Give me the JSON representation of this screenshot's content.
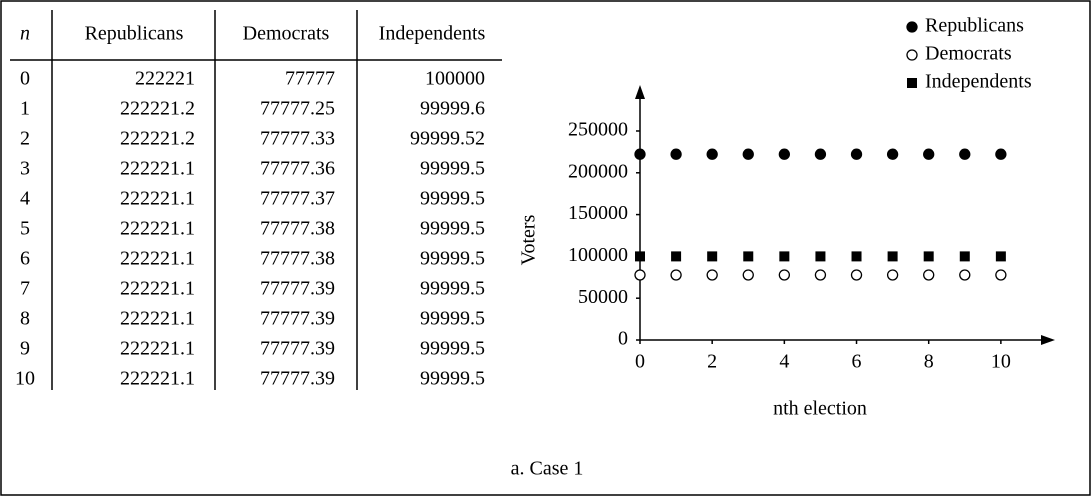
{
  "table": {
    "header": [
      "n",
      "Republicans",
      "Democrats",
      "Independents"
    ],
    "rows": [
      [
        "0",
        "222221",
        "77777",
        "100000"
      ],
      [
        "1",
        "222221.2",
        "77777.25",
        "99999.6"
      ],
      [
        "2",
        "222221.2",
        "77777.33",
        "99999.52"
      ],
      [
        "3",
        "222221.1",
        "77777.36",
        "99999.5"
      ],
      [
        "4",
        "222221.1",
        "77777.37",
        "99999.5"
      ],
      [
        "5",
        "222221.1",
        "77777.38",
        "99999.5"
      ],
      [
        "6",
        "222221.1",
        "77777.38",
        "99999.5"
      ],
      [
        "7",
        "222221.1",
        "77777.39",
        "99999.5"
      ],
      [
        "8",
        "222221.1",
        "77777.39",
        "99999.5"
      ],
      [
        "9",
        "222221.1",
        "77777.39",
        "99999.5"
      ],
      [
        "10",
        "222221.1",
        "77777.39",
        "99999.5"
      ]
    ]
  },
  "chart_data": {
    "type": "scatter",
    "x_label": "nth election",
    "y_label": "Voters",
    "x": [
      0,
      1,
      2,
      3,
      4,
      5,
      6,
      7,
      8,
      9,
      10
    ],
    "series": [
      {
        "name": "Republicans",
        "color": "#000000",
        "marker": "filled-circle",
        "values": [
          222221,
          222221.2,
          222221.2,
          222221.1,
          222221.1,
          222221.1,
          222221.1,
          222221.1,
          222221.1,
          222221.1,
          222221.1
        ]
      },
      {
        "name": "Democrats",
        "color": "#000000",
        "marker": "open-circle",
        "values": [
          77777,
          77777.25,
          77777.33,
          77777.36,
          77777.37,
          77777.38,
          77777.38,
          77777.39,
          77777.39,
          77777.39,
          77777.39
        ]
      },
      {
        "name": "Independents",
        "color": "#000000",
        "marker": "square",
        "values": [
          100000,
          99999.6,
          99999.52,
          99999.5,
          99999.5,
          99999.5,
          99999.5,
          99999.5,
          99999.5,
          99999.5,
          99999.5
        ]
      }
    ],
    "xlim": [
      0,
      11.5
    ],
    "xticks": [
      0,
      2,
      4,
      6,
      8,
      10
    ],
    "ylim": [
      0,
      305000
    ],
    "yticks": [
      0,
      50000,
      100000,
      150000,
      200000,
      250000
    ],
    "legend": "top-right"
  },
  "caption": "a. Case 1"
}
